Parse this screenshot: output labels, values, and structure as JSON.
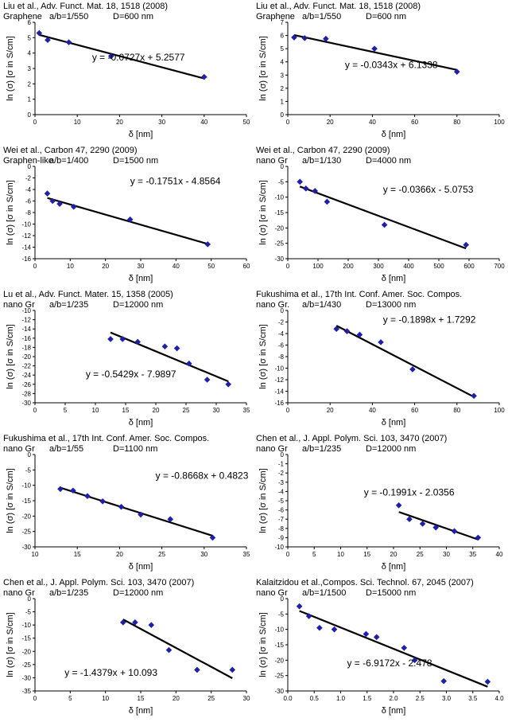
{
  "colors": {
    "marker": "#1f1fa8",
    "line": "#000000",
    "axis": "#000000"
  },
  "chart_data": [
    {
      "type": "scatter",
      "citation": "Liu et al., Adv. Funct. Mat. 18, 1518 (2008)",
      "material": "Graphene",
      "ab": "a/b=1/550",
      "D": "D=600 nm",
      "xlabel": "δ [nm]",
      "ylabel": "ln (σ) [σ in S/cm]",
      "xlim": [
        0,
        50
      ],
      "xticks": [
        0,
        10,
        20,
        30,
        40,
        50
      ],
      "ylim": [
        0,
        6
      ],
      "yticks": [
        0,
        1,
        2,
        3,
        4,
        5,
        6
      ],
      "points": [
        [
          1,
          5.3
        ],
        [
          3,
          4.85
        ],
        [
          8,
          4.7
        ],
        [
          18,
          3.8
        ],
        [
          40,
          2.45
        ]
      ],
      "fit": {
        "slope": -0.0727,
        "intercept": 5.2577,
        "x_range": [
          1,
          40
        ]
      },
      "equation": "y = -0.0727x + 5.2577",
      "equation_pos": [
        0.27,
        0.38
      ]
    },
    {
      "type": "scatter",
      "citation": "Liu et al., Adv. Funct. Mat. 18, 1518 (2008)",
      "material": "Graphene",
      "ab": "a/b=1/550",
      "D": "D=600 nm",
      "xlabel": "δ [nm]",
      "ylabel": "ln (σ) [σ in S/cm]",
      "xlim": [
        0,
        100
      ],
      "xticks": [
        0,
        20,
        40,
        60,
        80,
        100
      ],
      "ylim": [
        0,
        7
      ],
      "yticks": [
        0,
        1,
        2,
        3,
        4,
        5,
        6,
        7
      ],
      "points": [
        [
          3,
          5.85
        ],
        [
          8,
          5.8
        ],
        [
          18,
          5.75
        ],
        [
          41,
          5.0
        ],
        [
          80,
          3.25
        ]
      ],
      "fit": {
        "slope": -0.0343,
        "intercept": 6.1338,
        "x_range": [
          3,
          80
        ]
      },
      "equation": "y = -0.0343x + 6.1338",
      "equation_pos": [
        0.27,
        0.46
      ]
    },
    {
      "type": "scatter",
      "citation": "Wei et al., Carbon 47, 2290 (2009)",
      "material": "Graphen-like",
      "ab": "a/b=1/400",
      "D": "D=1500 nm",
      "xlabel": "δ [nm]",
      "ylabel": "ln (σ) [σ in S/cm]",
      "xlim": [
        0,
        60
      ],
      "xticks": [
        0,
        10,
        20,
        30,
        40,
        50,
        60
      ],
      "ylim": [
        -16,
        0
      ],
      "yticks": [
        -16,
        -14,
        -12,
        -10,
        -8,
        -6,
        -4,
        -2,
        0
      ],
      "points": [
        [
          3.5,
          -4.7
        ],
        [
          5,
          -6.0
        ],
        [
          7,
          -6.5
        ],
        [
          11,
          -7.0
        ],
        [
          27,
          -9.2
        ],
        [
          49,
          -13.5
        ]
      ],
      "fit": {
        "slope": -0.1751,
        "intercept": -4.8564,
        "x_range": [
          3.5,
          49
        ]
      },
      "equation": "y = -0.1751x - 4.8564",
      "equation_pos": [
        0.45,
        0.16
      ]
    },
    {
      "type": "scatter",
      "citation": "Wei et al., Carbon 47, 2290 (2009)",
      "material": "nano Gr",
      "ab": "a/b=1/130",
      "D": "D=4000 nm",
      "xlabel": "δ [nm]",
      "ylabel": "ln (σ) [σ in S/cm]",
      "xlim": [
        0,
        700
      ],
      "xticks": [
        0,
        100,
        200,
        300,
        400,
        500,
        600,
        700
      ],
      "ylim": [
        -30,
        0
      ],
      "yticks": [
        -30,
        -25,
        -20,
        -15,
        -10,
        -5,
        0
      ],
      "points": [
        [
          40,
          -5.0
        ],
        [
          60,
          -7.2
        ],
        [
          90,
          -8.0
        ],
        [
          130,
          -11.5
        ],
        [
          320,
          -19.0
        ],
        [
          590,
          -25.5
        ]
      ],
      "fit": {
        "slope": -0.0366,
        "intercept": -5.0753,
        "x_range": [
          40,
          590
        ]
      },
      "equation": "y = -0.0366x - 5.0753",
      "equation_pos": [
        0.45,
        0.25
      ]
    },
    {
      "type": "scatter",
      "citation": "Lu et al., Adv. Funct. Mater. 15, 1358 (2005)",
      "material": "nano Gr",
      "ab": "a/b=1/235",
      "D": "D=12000 nm",
      "xlabel": "δ [nm]",
      "ylabel": "ln (σ) [σ in S/cm]",
      "xlim": [
        0,
        35
      ],
      "xticks": [
        0,
        5,
        10,
        15,
        20,
        25,
        30,
        35
      ],
      "ylim": [
        -30,
        -10
      ],
      "yticks": [
        -30,
        -28,
        -26,
        -24,
        -22,
        -20,
        -18,
        -16,
        -14,
        -12,
        -10
      ],
      "points": [
        [
          12.5,
          -16.2
        ],
        [
          14.5,
          -16.2
        ],
        [
          17,
          -16.8
        ],
        [
          21.5,
          -17.8
        ],
        [
          23.5,
          -18.2
        ],
        [
          25.5,
          -21.5
        ],
        [
          28.5,
          -25.0
        ],
        [
          32,
          -26.0
        ]
      ],
      "fit": {
        "slope": -0.5429,
        "intercept": -7.9897,
        "x_range": [
          12.5,
          32
        ]
      },
      "equation": "y = -0.5429x - 7.9897",
      "equation_pos": [
        0.24,
        0.69
      ]
    },
    {
      "type": "scatter",
      "citation": "Fukushima et al., 17th Int. Conf. Amer. Soc. Compos.",
      "material": "nano Gr.",
      "ab": "a/b=1/430",
      "D": "D=13000 nm",
      "xlabel": "δ [nm]",
      "ylabel": "ln (σ) [σ in S/cm]",
      "xlim": [
        0,
        100
      ],
      "xticks": [
        0,
        20,
        40,
        60,
        80,
        100
      ],
      "ylim": [
        -16,
        0
      ],
      "yticks": [
        -16,
        -14,
        -12,
        -10,
        -8,
        -6,
        -4,
        -2,
        0
      ],
      "points": [
        [
          23,
          -3.2
        ],
        [
          28,
          -3.6
        ],
        [
          34,
          -4.2
        ],
        [
          44,
          -5.5
        ],
        [
          59,
          -10.2
        ],
        [
          88,
          -14.8
        ]
      ],
      "fit": {
        "slope": -0.1898,
        "intercept": 1.7292,
        "x_range": [
          23,
          88
        ]
      },
      "equation": "y = -0.1898x + 1.7292",
      "equation_pos": [
        0.45,
        0.1
      ]
    },
    {
      "type": "scatter",
      "citation": "Fukushima et al., 17th Int. Conf. Amer. Soc. Compos.",
      "material": "nano Gr",
      "ab": "a/b=1/55",
      "D": "D=1100 nm",
      "xlabel": "δ [nm]",
      "ylabel": "ln (σ) [σ in S/cm]",
      "xlim": [
        10,
        35
      ],
      "xticks": [
        10,
        15,
        20,
        25,
        30,
        35
      ],
      "ylim": [
        -30,
        0
      ],
      "yticks": [
        -30,
        -25,
        -20,
        -15,
        -10,
        -5,
        0
      ],
      "points": [
        [
          13,
          -11.2
        ],
        [
          14.5,
          -11.7
        ],
        [
          16.2,
          -13.5
        ],
        [
          18,
          -15.2
        ],
        [
          20.2,
          -17.0
        ],
        [
          22.5,
          -19.5
        ],
        [
          26,
          -21.0
        ],
        [
          31,
          -27.0
        ]
      ],
      "fit": {
        "slope": -0.8668,
        "intercept": 0.4823,
        "x_range": [
          13,
          31
        ]
      },
      "equation": "y = -0.8668x + 0.4823",
      "equation_pos": [
        0.57,
        0.23
      ]
    },
    {
      "type": "scatter",
      "citation": "Chen et al., J. Appl. Polym. Sci. 103, 3470 (2007)",
      "material": "nano Gr",
      "ab": "a/b=1/235",
      "D": "D=12000 nm",
      "xlabel": "δ [nm]",
      "ylabel": "ln (σ) [σ in S/cm]",
      "xlim": [
        0,
        40
      ],
      "xticks": [
        0,
        5,
        10,
        15,
        20,
        25,
        30,
        35,
        40
      ],
      "ylim": [
        -10,
        0
      ],
      "yticks": [
        -10,
        -9,
        -8,
        -7,
        -6,
        -5,
        -4,
        -3,
        -2,
        -1,
        0
      ],
      "points": [
        [
          21,
          -5.5
        ],
        [
          23,
          -7.0
        ],
        [
          25.5,
          -7.5
        ],
        [
          28,
          -7.9
        ],
        [
          31.5,
          -8.3
        ],
        [
          36,
          -9.0
        ]
      ],
      "fit": {
        "slope": -0.1991,
        "intercept": -2.0356,
        "x_range": [
          21,
          36
        ]
      },
      "equation": "y = -0.1991x - 2.0356",
      "equation_pos": [
        0.36,
        0.41
      ]
    },
    {
      "type": "scatter",
      "citation": "Chen et al., J. Appl. Polym. Sci. 103, 3470 (2007)",
      "material": "nano Gr",
      "ab": "a/b=1/235",
      "D": "D=12000 nm",
      "xlabel": "δ [nm]",
      "ylabel": "ln (σ) [σ in S/cm]",
      "xlim": [
        0,
        30
      ],
      "xticks": [
        0,
        5,
        10,
        15,
        20,
        25,
        30
      ],
      "ylim": [
        -35,
        0
      ],
      "yticks": [
        -35,
        -30,
        -25,
        -20,
        -15,
        -10,
        -5,
        0
      ],
      "points": [
        [
          12.5,
          -9.0
        ],
        [
          14.2,
          -9.0
        ],
        [
          16.5,
          -10.0
        ],
        [
          19,
          -19.5
        ],
        [
          23,
          -27.0
        ],
        [
          28,
          -27.0
        ]
      ],
      "fit": {
        "slope": -1.4379,
        "intercept": 10.093,
        "x_range": [
          12.5,
          28
        ]
      },
      "equation": "y = -1.4379x + 10.093",
      "equation_pos": [
        0.14,
        0.8
      ]
    },
    {
      "type": "scatter",
      "citation": "Kalaitzidou et al.,Compos. Sci. Technol. 67, 2045 (2007)",
      "material": "nano Gr",
      "ab": "a/b=1/1500",
      "D": "D=15000 nm",
      "xlabel": "δ [nm]",
      "ylabel": "ln (σ) [σ in S/cm]",
      "xlim": [
        0,
        4
      ],
      "xticks": [
        "0.0",
        "0.5",
        "1.0",
        "1.5",
        "2.0",
        "2.5",
        "3.0",
        "3.5",
        "4.0"
      ],
      "ylim": [
        -30,
        0
      ],
      "yticks": [
        -30,
        -25,
        -20,
        -15,
        -10,
        -5,
        0
      ],
      "points": [
        [
          0.22,
          -2.5
        ],
        [
          0.4,
          -5.7
        ],
        [
          0.6,
          -9.5
        ],
        [
          0.88,
          -10.0
        ],
        [
          1.48,
          -11.5
        ],
        [
          1.68,
          -12.5
        ],
        [
          2.2,
          -16.0
        ],
        [
          2.4,
          -20.0
        ],
        [
          2.95,
          -26.8
        ],
        [
          3.78,
          -27.0
        ]
      ],
      "fit": {
        "slope": -6.9172,
        "intercept": -2.478,
        "x_range": [
          0.22,
          3.78
        ]
      },
      "equation": "y = -6.9172x - 2.478",
      "equation_pos": [
        0.28,
        0.7
      ]
    }
  ]
}
